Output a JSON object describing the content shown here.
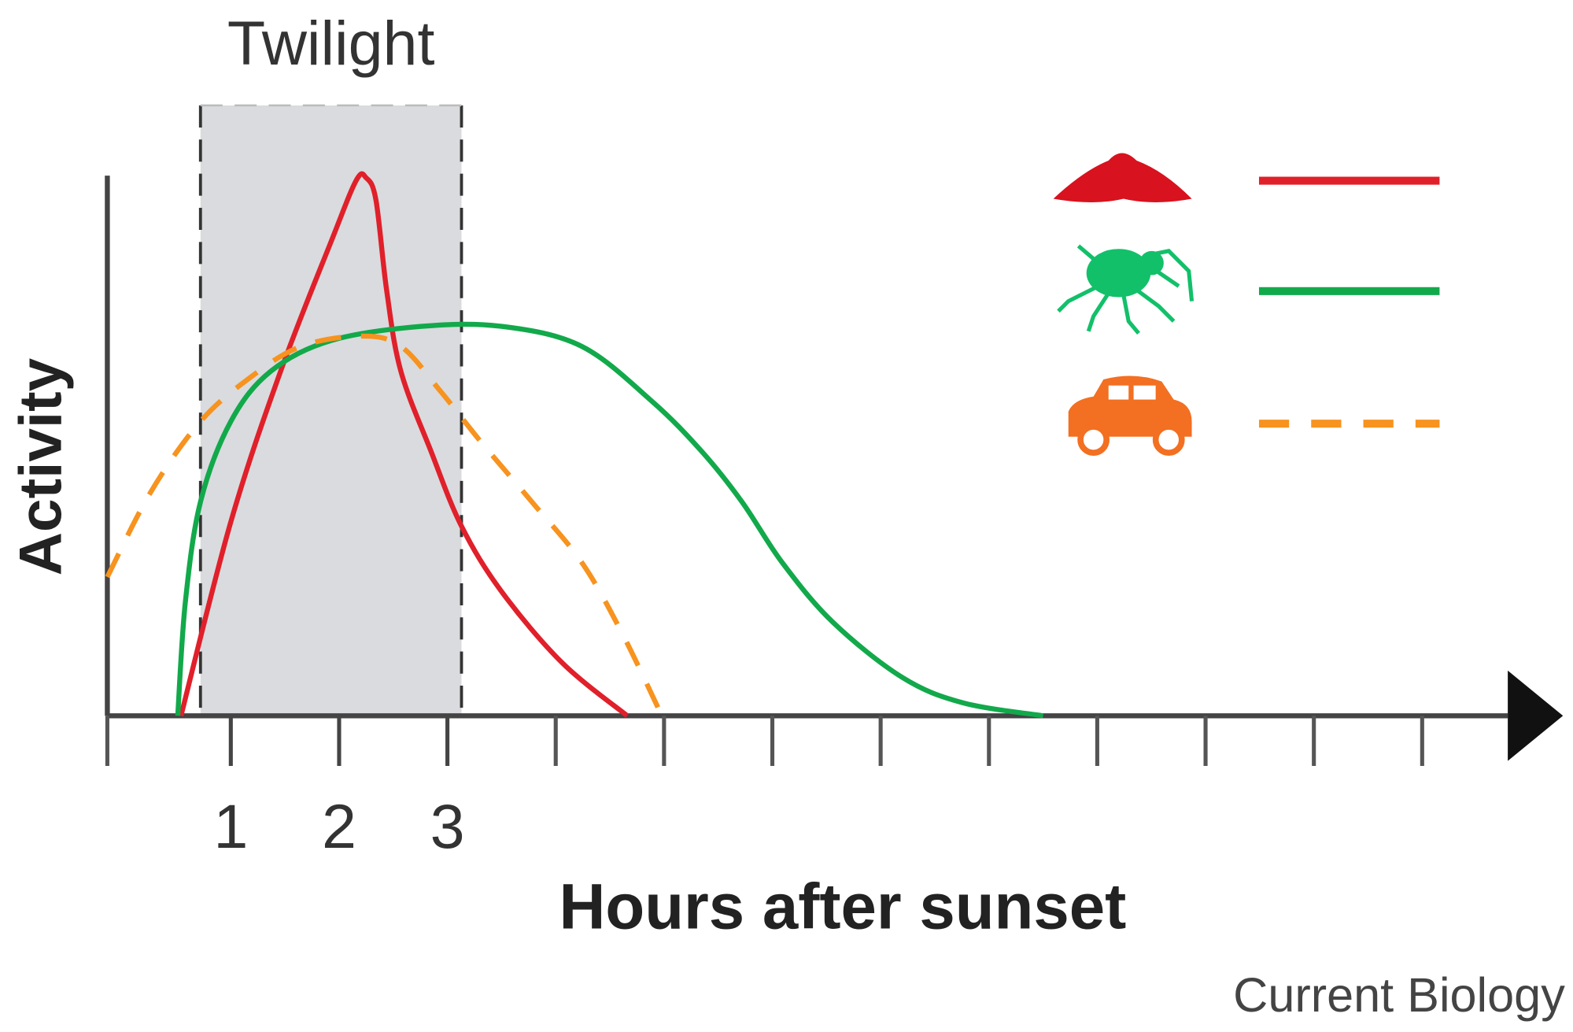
{
  "chart_data": {
    "type": "line",
    "annotation": "Twilight",
    "y_label": "Activity",
    "x_label": "Hours after sunset",
    "source": "Current Biology",
    "twilight": [
      0.72,
      3.13
    ],
    "xlim": [
      -0.14,
      13.3
    ],
    "ylim": [
      0,
      100
    ],
    "xticks": [
      1,
      2,
      3
    ],
    "minor_xticks": [
      -0.14,
      4,
      5,
      6,
      7,
      8,
      9,
      10,
      11,
      12
    ],
    "series": [
      {
        "color": "#e0202a",
        "dash": false,
        "x": [
          0.54,
          1.0,
          1.46,
          1.93,
          2.16,
          2.25,
          2.34,
          2.44,
          2.57,
          2.85,
          3.13,
          3.5,
          4.06,
          4.66
        ],
        "values": [
          0,
          35.9,
          63.8,
          88,
          99.2,
          99.6,
          95.5,
          78.6,
          63.8,
          48.9,
          35.1,
          23,
          9.8,
          0
        ]
      },
      {
        "color": "#12a94b",
        "dash": false,
        "x": [
          0.51,
          0.58,
          0.72,
          1.0,
          1.37,
          1.93,
          2.76,
          3.5,
          4.24,
          4.89,
          5.35,
          5.72,
          6.09,
          6.56,
          7.2,
          7.76,
          8.5
        ],
        "values": [
          0,
          21,
          39.6,
          54.5,
          63.8,
          69.5,
          72.1,
          72.1,
          68.4,
          58.2,
          48.9,
          39.6,
          28.4,
          17.3,
          7.1,
          2.4,
          0
        ]
      },
      {
        "color": "#f7931e",
        "dash": true,
        "x": [
          -0.14,
          0.26,
          0.72,
          1.19,
          1.65,
          2.2,
          2.57,
          2.94,
          3.31,
          3.78,
          4.24,
          4.61,
          4.98
        ],
        "values": [
          25.7,
          41.4,
          54.5,
          62.8,
          68.4,
          70.3,
          68.4,
          60,
          50.7,
          39.6,
          28.4,
          15.4,
          0
        ]
      }
    ]
  }
}
